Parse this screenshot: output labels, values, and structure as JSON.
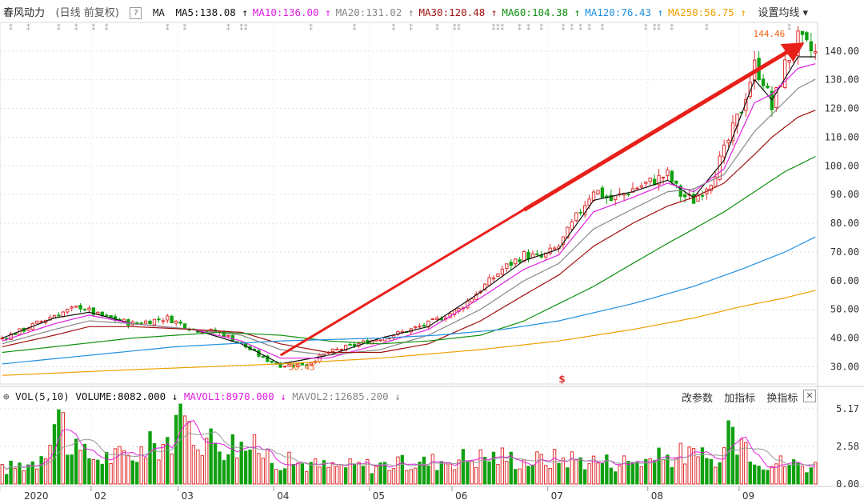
{
  "title": "春风动力",
  "mode": "(日线 前复权)",
  "help_glyph": "?",
  "ma_label": "MA",
  "settings_label": "设置均线 ▾",
  "ma_legend": [
    {
      "label": "MA5:138.08",
      "arrow": "↑",
      "color": "#111111"
    },
    {
      "label": "MA10:136.00",
      "arrow": "↑",
      "color": "#e020e0"
    },
    {
      "label": "MA20:131.02",
      "arrow": "↑",
      "color": "#888888"
    },
    {
      "label": "MA30:120.48",
      "arrow": "↑",
      "color": "#a01010"
    },
    {
      "label": "MA60:104.38",
      "arrow": "↑",
      "color": "#109010"
    },
    {
      "label": "MA120:76.43",
      "arrow": "↑",
      "color": "#2090e0"
    },
    {
      "label": "MA250:56.75",
      "arrow": "↑",
      "color": "#f0a000"
    }
  ],
  "vol_header": {
    "name": "VOL(5,10)",
    "volume": "VOLUME:8082.000",
    "volume_arrow": "↓",
    "mavol1": "MAVOL1:8970.000",
    "mavol1_arrow": "↓",
    "mavol2": "MAVOL2:12685.200",
    "mavol2_arrow": "↓"
  },
  "vol_actions": [
    "改参数",
    "加指标",
    "换指标"
  ],
  "close_glyph": "✕",
  "annotations": {
    "low_label": "30.43",
    "high_label": "144.46",
    "marker": "$"
  },
  "colors": {
    "up": "#e03030",
    "down": "#10a010",
    "arrow": "#e8201a",
    "grid": "#e0e0e0"
  },
  "chart_data": {
    "type": "candlestick",
    "title": "春风动力 (日线 前复权)",
    "y_range": [
      24,
      150
    ],
    "y_ticks": [
      30,
      40,
      50,
      60,
      70,
      80,
      90,
      100,
      110,
      120,
      130,
      140
    ],
    "y_tick_labels": [
      "30.00",
      "40.00",
      "50.00",
      "60.00",
      "70.00",
      "80.00",
      "90.00",
      "100.00",
      "110.00",
      "120.00",
      "130.00",
      "140.00"
    ],
    "x_month_labels": [
      "2020",
      "02",
      "03",
      "04",
      "05",
      "06",
      "07",
      "08",
      "09"
    ],
    "x_month_day_index": [
      0,
      21,
      41,
      63,
      85,
      104,
      126,
      149,
      170
    ],
    "n_days": 188,
    "close_keypoints": [
      [
        0,
        40
      ],
      [
        5,
        43
      ],
      [
        12,
        48
      ],
      [
        18,
        51
      ],
      [
        22,
        48
      ],
      [
        30,
        45
      ],
      [
        38,
        47
      ],
      [
        44,
        43
      ],
      [
        50,
        42
      ],
      [
        55,
        38
      ],
      [
        60,
        33
      ],
      [
        64,
        30.5
      ],
      [
        70,
        31
      ],
      [
        75,
        35
      ],
      [
        82,
        38
      ],
      [
        87,
        40
      ],
      [
        92,
        42
      ],
      [
        98,
        45
      ],
      [
        105,
        50
      ],
      [
        110,
        57
      ],
      [
        115,
        64
      ],
      [
        120,
        69
      ],
      [
        124,
        68
      ],
      [
        128,
        72
      ],
      [
        132,
        82
      ],
      [
        136,
        92
      ],
      [
        140,
        88
      ],
      [
        145,
        92
      ],
      [
        150,
        95
      ],
      [
        153,
        97
      ],
      [
        156,
        90
      ],
      [
        159,
        88
      ],
      [
        163,
        95
      ],
      [
        166,
        105
      ],
      [
        170,
        120
      ],
      [
        173,
        135
      ],
      [
        175,
        130
      ],
      [
        177,
        120
      ],
      [
        180,
        135
      ],
      [
        183,
        144
      ],
      [
        186,
        140
      ],
      [
        188,
        138
      ]
    ],
    "ma_series": [
      {
        "name": "MA5",
        "color": "#111111",
        "keypoints": [
          [
            0,
            40
          ],
          [
            12,
            47
          ],
          [
            20,
            49
          ],
          [
            30,
            45
          ],
          [
            44,
            43
          ],
          [
            55,
            38
          ],
          [
            64,
            31
          ],
          [
            75,
            34
          ],
          [
            87,
            40
          ],
          [
            98,
            44
          ],
          [
            110,
            56
          ],
          [
            120,
            67
          ],
          [
            128,
            71
          ],
          [
            136,
            88
          ],
          [
            145,
            91
          ],
          [
            153,
            95
          ],
          [
            159,
            89
          ],
          [
            166,
            102
          ],
          [
            173,
            130
          ],
          [
            177,
            123
          ],
          [
            183,
            138
          ],
          [
            188,
            138
          ]
        ]
      },
      {
        "name": "MA10",
        "color": "#e020e0",
        "keypoints": [
          [
            0,
            39
          ],
          [
            12,
            45
          ],
          [
            20,
            48
          ],
          [
            30,
            45
          ],
          [
            44,
            43
          ],
          [
            55,
            39
          ],
          [
            64,
            33
          ],
          [
            75,
            33
          ],
          [
            87,
            38
          ],
          [
            98,
            43
          ],
          [
            110,
            54
          ],
          [
            120,
            64
          ],
          [
            128,
            69
          ],
          [
            136,
            84
          ],
          [
            145,
            89
          ],
          [
            153,
            94
          ],
          [
            159,
            91
          ],
          [
            166,
            99
          ],
          [
            173,
            122
          ],
          [
            177,
            125
          ],
          [
            183,
            134
          ],
          [
            188,
            136
          ]
        ]
      },
      {
        "name": "MA20",
        "color": "#888888",
        "keypoints": [
          [
            0,
            38
          ],
          [
            12,
            43
          ],
          [
            20,
            46
          ],
          [
            30,
            45
          ],
          [
            44,
            43
          ],
          [
            55,
            41
          ],
          [
            64,
            36
          ],
          [
            75,
            34
          ],
          [
            87,
            36
          ],
          [
            98,
            41
          ],
          [
            110,
            50
          ],
          [
            120,
            60
          ],
          [
            128,
            66
          ],
          [
            136,
            78
          ],
          [
            145,
            85
          ],
          [
            153,
            91
          ],
          [
            159,
            92
          ],
          [
            166,
            97
          ],
          [
            173,
            112
          ],
          [
            177,
            118
          ],
          [
            183,
            127
          ],
          [
            188,
            131
          ]
        ]
      },
      {
        "name": "MA30",
        "color": "#a01010",
        "keypoints": [
          [
            0,
            37
          ],
          [
            12,
            41
          ],
          [
            20,
            44
          ],
          [
            30,
            44
          ],
          [
            44,
            43
          ],
          [
            55,
            42
          ],
          [
            64,
            38
          ],
          [
            75,
            35
          ],
          [
            87,
            35
          ],
          [
            98,
            38
          ],
          [
            110,
            46
          ],
          [
            120,
            55
          ],
          [
            128,
            62
          ],
          [
            136,
            72
          ],
          [
            145,
            80
          ],
          [
            153,
            86
          ],
          [
            159,
            89
          ],
          [
            166,
            94
          ],
          [
            173,
            104
          ],
          [
            177,
            110
          ],
          [
            183,
            117
          ],
          [
            188,
            120
          ]
        ]
      },
      {
        "name": "MA60",
        "color": "#109010",
        "keypoints": [
          [
            0,
            35
          ],
          [
            12,
            37
          ],
          [
            30,
            40
          ],
          [
            50,
            42
          ],
          [
            64,
            41
          ],
          [
            75,
            39
          ],
          [
            87,
            38
          ],
          [
            98,
            39
          ],
          [
            110,
            41
          ],
          [
            120,
            46
          ],
          [
            128,
            52
          ],
          [
            136,
            58
          ],
          [
            145,
            66
          ],
          [
            153,
            73
          ],
          [
            159,
            78
          ],
          [
            166,
            84
          ],
          [
            173,
            91
          ],
          [
            180,
            98
          ],
          [
            188,
            104
          ]
        ]
      },
      {
        "name": "MA120",
        "color": "#2090e0",
        "keypoints": [
          [
            0,
            31
          ],
          [
            20,
            34
          ],
          [
            40,
            37
          ],
          [
            64,
            39
          ],
          [
            87,
            40
          ],
          [
            100,
            41
          ],
          [
            115,
            43
          ],
          [
            128,
            46
          ],
          [
            145,
            52
          ],
          [
            159,
            58
          ],
          [
            170,
            64
          ],
          [
            180,
            70
          ],
          [
            188,
            76
          ]
        ]
      },
      {
        "name": "MA250",
        "color": "#f0a000",
        "keypoints": [
          [
            0,
            27
          ],
          [
            30,
            29
          ],
          [
            64,
            31
          ],
          [
            87,
            33
          ],
          [
            110,
            36
          ],
          [
            128,
            39
          ],
          [
            145,
            43
          ],
          [
            159,
            47
          ],
          [
            170,
            51
          ],
          [
            180,
            54
          ],
          [
            188,
            57
          ]
        ]
      }
    ],
    "volume": {
      "y_range": [
        0,
        5.5
      ],
      "y_ticks": [
        0,
        2.58,
        5.17
      ],
      "y_tick_labels": [
        "0.00",
        "2.58",
        "5.17"
      ],
      "baseline_keypoints": [
        [
          0,
          1.0
        ],
        [
          8,
          1.6
        ],
        [
          13,
          5.1
        ],
        [
          16,
          2.2
        ],
        [
          22,
          1.8
        ],
        [
          30,
          2.0
        ],
        [
          38,
          3.1
        ],
        [
          42,
          4.1
        ],
        [
          48,
          3.0
        ],
        [
          55,
          2.7
        ],
        [
          60,
          2.2
        ],
        [
          64,
          1.6
        ],
        [
          75,
          1.2
        ],
        [
          85,
          1.3
        ],
        [
          95,
          1.4
        ],
        [
          105,
          1.8
        ],
        [
          115,
          1.9
        ],
        [
          120,
          1.6
        ],
        [
          130,
          1.8
        ],
        [
          140,
          1.5
        ],
        [
          150,
          1.7
        ],
        [
          157,
          2.1
        ],
        [
          165,
          1.4
        ],
        [
          168,
          3.9
        ],
        [
          175,
          1.6
        ],
        [
          188,
          1.2
        ]
      ],
      "mavol1_color": "#e020e0",
      "mavol2_color": "#999999"
    }
  }
}
